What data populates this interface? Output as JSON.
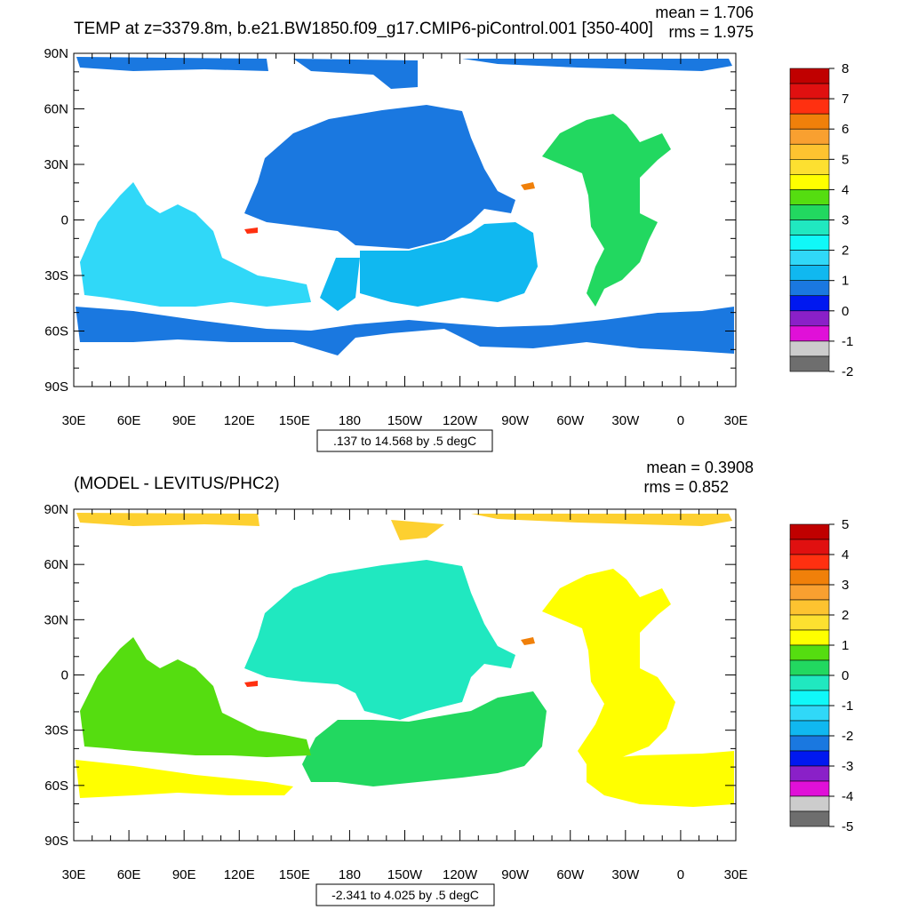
{
  "panels": [
    {
      "title": "TEMP at z=3379.8m, b.e21.BW1850.f09_g17.CMIP6-piControl.001 [350-400]",
      "mean_text": "mean = 1.706",
      "rms_text": "rms = 1.975",
      "range_text": ".137 to 14.568 by .5 degC",
      "colorbar": {
        "labels": [
          "8",
          "7",
          "6",
          "5",
          "4",
          "3",
          "2",
          "1",
          "0",
          "-1",
          "-2"
        ],
        "colors": [
          "#c00000",
          "#e01010",
          "#ff3010",
          "#f0800a",
          "#f9a030",
          "#fdc330",
          "#fde030",
          "#ffff00",
          "#55dd10",
          "#22d860",
          "#20e8c0",
          "#10f8f8",
          "#30d8f8",
          "#10b8f0",
          "#1a78e0",
          "#0018f0",
          "#8a20c8",
          "#e010d8",
          "#cccccc",
          "#6e6e6e"
        ]
      },
      "regions": [
        {
          "id": "arctic",
          "color": "#1a78e0"
        },
        {
          "id": "north-pacific",
          "color": "#1a78e0"
        },
        {
          "id": "pacific-south",
          "color": "#10b8f0"
        },
        {
          "id": "indian-ocean",
          "color": "#30d8f8"
        },
        {
          "id": "southern-ocean",
          "color": "#1a78e0"
        },
        {
          "id": "atlantic",
          "color": "#22d860"
        },
        {
          "id": "red-spot",
          "color": "#ff3010"
        },
        {
          "id": "orange-spot",
          "color": "#f0800a"
        }
      ]
    },
    {
      "title": "(MODEL - LEVITUS/PHC2)",
      "mean_text": "mean = 0.3908",
      "rms_text": "rms = 0.852",
      "range_text": "-2.341 to 4.025 by .5 degC",
      "colorbar": {
        "labels": [
          "5",
          "4",
          "3",
          "2",
          "1",
          "0",
          "-1",
          "-2",
          "-3",
          "-4",
          "-5"
        ],
        "colors": [
          "#c00000",
          "#e01010",
          "#ff3010",
          "#f0800a",
          "#f9a030",
          "#fdc330",
          "#fde030",
          "#ffff00",
          "#55dd10",
          "#22d860",
          "#20e8c0",
          "#10f8f8",
          "#30d8f8",
          "#10b8f0",
          "#1a78e0",
          "#0018f0",
          "#8a20c8",
          "#e010d8",
          "#cccccc",
          "#6e6e6e"
        ]
      },
      "regions": [
        {
          "id": "arctic",
          "color": "#fdd030"
        },
        {
          "id": "north-pacific",
          "color": "#20e8c0"
        },
        {
          "id": "pacific-south",
          "color": "#22d860"
        },
        {
          "id": "indian-ocean",
          "color": "#55dd10"
        },
        {
          "id": "southern-ocean",
          "color": "#ffff00"
        },
        {
          "id": "atlantic",
          "color": "#ffff00"
        },
        {
          "id": "red-spot",
          "color": "#ff3010"
        },
        {
          "id": "orange-spot",
          "color": "#f0800a"
        }
      ]
    }
  ],
  "axes": {
    "y_labels": [
      "90N",
      "60N",
      "30N",
      "0",
      "30S",
      "60S",
      "90S"
    ],
    "x_labels": [
      "30E",
      "60E",
      "90E",
      "120E",
      "150E",
      "180",
      "150W",
      "120W",
      "90W",
      "60W",
      "30W",
      "0",
      "30E"
    ]
  }
}
